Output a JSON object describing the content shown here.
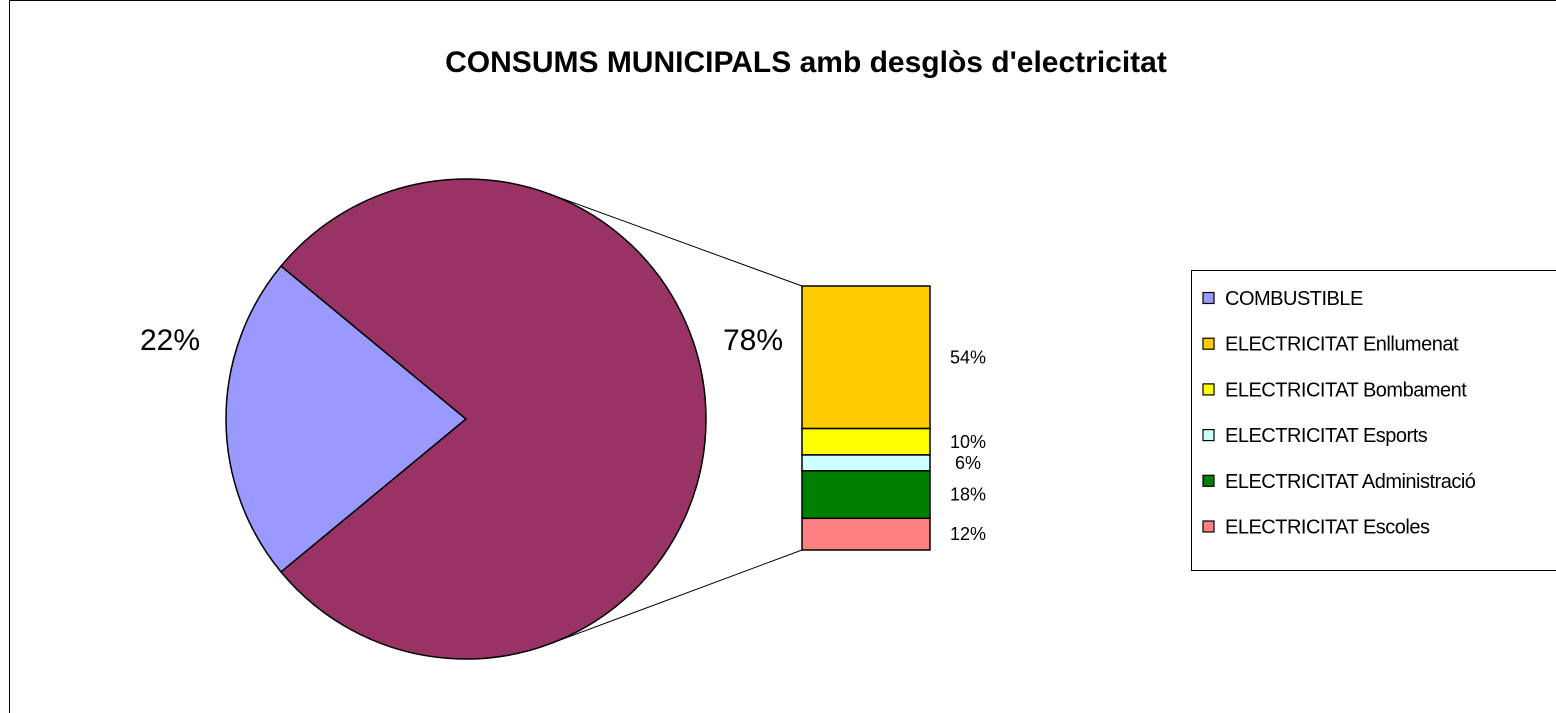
{
  "chart_data": {
    "type": "pie",
    "subtype": "bar-of-pie",
    "title": "CONSUMS MUNICIPALS amb desglòs d'electricitat",
    "pie": {
      "slices": [
        {
          "label": "COMBUSTIBLE",
          "value": 22,
          "value_label": "22%",
          "color": "#9999FF"
        },
        {
          "label": "ELECTRICITAT",
          "value": 78,
          "value_label": "78%",
          "color": "#993366"
        }
      ]
    },
    "breakdown_bar": {
      "of_slice": "ELECTRICITAT",
      "segments": [
        {
          "label": "ELECTRICITAT Enllumenat",
          "value": 54,
          "value_label": "54%",
          "color": "#FFCC00"
        },
        {
          "label": "ELECTRICITAT Bombament",
          "value": 10,
          "value_label": "10%",
          "color": "#FFFF00"
        },
        {
          "label": "ELECTRICITAT Esports",
          "value": 6,
          "value_label": "6%",
          "color": "#CCFFFF"
        },
        {
          "label": "ELECTRICITAT Administració",
          "value": 18,
          "value_label": "18%",
          "color": "#008000"
        },
        {
          "label": "ELECTRICITAT Escoles",
          "value": 12,
          "value_label": "12%",
          "color": "#FF8080"
        }
      ]
    },
    "legend": {
      "position": "right",
      "entries": [
        {
          "label": "COMBUSTIBLE",
          "color": "#9999FF"
        },
        {
          "label": "ELECTRICITAT Enllumenat",
          "color": "#FFCC00"
        },
        {
          "label": "ELECTRICITAT Bombament",
          "color": "#FFFF00"
        },
        {
          "label": "ELECTRICITAT Esports",
          "color": "#CCFFFF"
        },
        {
          "label": "ELECTRICITAT Administració",
          "color": "#008000"
        },
        {
          "label": "ELECTRICITAT Escoles",
          "color": "#FF8080"
        }
      ]
    }
  }
}
